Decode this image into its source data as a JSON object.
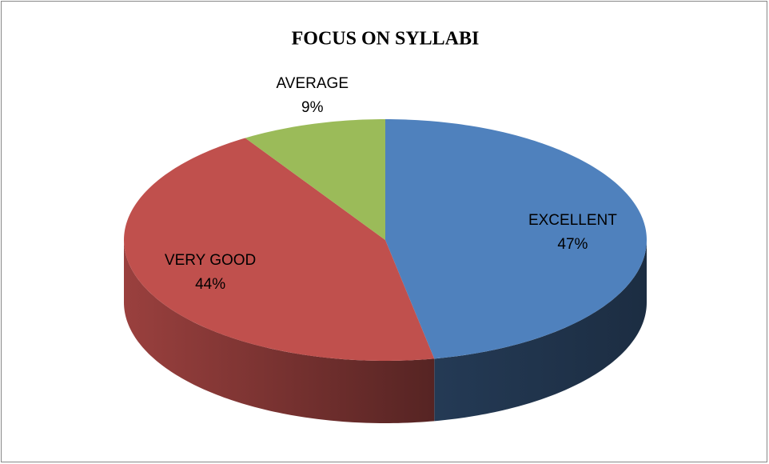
{
  "chart_data": {
    "type": "pie",
    "title": "FOCUS ON SYLLABI",
    "categories": [
      "EXCELLENT",
      "VERY GOOD",
      "AVERAGE"
    ],
    "values": [
      47,
      44,
      9
    ],
    "value_labels": [
      "47%",
      "44%",
      "9%"
    ],
    "colors": [
      "#4f81bd",
      "#c0504d",
      "#9bbb59"
    ]
  }
}
